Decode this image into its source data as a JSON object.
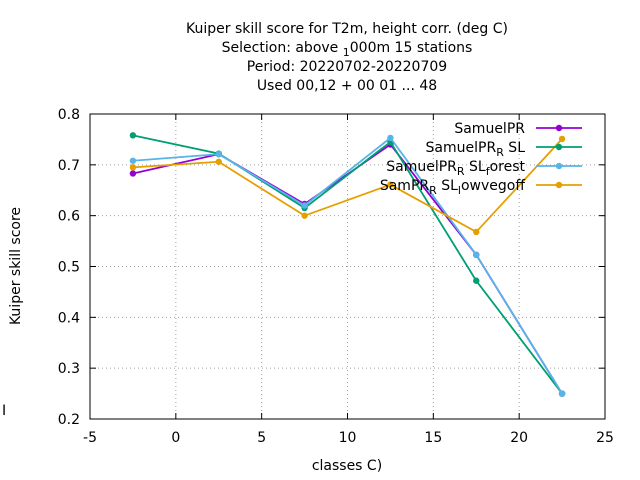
{
  "chart_data": {
    "type": "line",
    "title_lines": [
      "Kuiper skill score  for T2m, height corr. (deg C)",
      "Selection: above 1000m      15 stations",
      "Period: 20220702-20220709",
      "Used  00,12  + 00 01 ... 48"
    ],
    "xlabel": "classes C)",
    "ylabel": "Kuiper skill score",
    "xlim": [
      -5,
      25
    ],
    "ylim": [
      0.2,
      0.8
    ],
    "xticks": [
      -5,
      0,
      5,
      10,
      15,
      20,
      25
    ],
    "yticks": [
      0.2,
      0.3,
      0.4,
      0.5,
      0.6,
      0.7,
      0.8
    ],
    "grid": true,
    "legend_position": "top-right",
    "x": [
      -2.5,
      2.5,
      7.5,
      12.5,
      17.5,
      22.5
    ],
    "series": [
      {
        "name": "SamuelPR",
        "color": "#9400d3",
        "marker": "circle",
        "values": [
          0.683,
          0.721,
          0.623,
          0.74,
          0.523,
          0.25
        ]
      },
      {
        "name": "SamuelPR_R SL",
        "color": "#009e73",
        "marker": "circle",
        "values": [
          0.758,
          0.722,
          0.615,
          0.745,
          0.472,
          0.25
        ]
      },
      {
        "name": "SamuelPR_R SL_forest",
        "color": "#56b4e9",
        "marker": "circle",
        "values": [
          0.708,
          0.721,
          0.62,
          0.753,
          0.523,
          0.25
        ]
      },
      {
        "name": "SamPR_R SL_lowvegoff",
        "color": "#e69f00",
        "marker": "circle",
        "values": [
          0.695,
          0.706,
          0.6,
          0.661,
          0.568,
          0.751
        ]
      }
    ]
  }
}
